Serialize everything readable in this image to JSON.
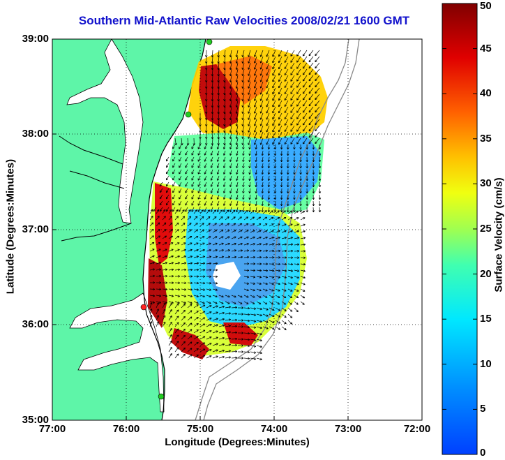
{
  "title": "Southern Mid-Atlantic Raw Velocities 2008/02/21 1600 GMT",
  "axes": {
    "xlabel": "Longitude (Degrees:Minutes)",
    "ylabel": "Latitude (Degrees:Minutes)",
    "xticks": [
      "77:00",
      "76:00",
      "75:00",
      "74:00",
      "73:00",
      "72:00"
    ],
    "yticks": [
      "39:00",
      "38:00",
      "37:00",
      "36:00",
      "35:00"
    ]
  },
  "colorbar": {
    "label": "Surface Velocity (cm/s)",
    "ticks": [
      "50",
      "45",
      "40",
      "35",
      "30",
      "25",
      "20",
      "15",
      "10",
      "5",
      "0"
    ]
  },
  "colors": {
    "land": "#5ef5a8",
    "water": "#ffffff",
    "title": "#1111cc",
    "station_green": "#22cc22",
    "station_red": "#ff2222"
  },
  "chart_data": {
    "type": "heatmap",
    "title": "Southern Mid-Atlantic Raw Velocities 2008/02/21 1600 GMT",
    "xlabel": "Longitude (Degrees:Minutes)",
    "ylabel": "Latitude (Degrees:Minutes)",
    "xlim": [
      -77.0,
      -72.0
    ],
    "ylim": [
      35.0,
      39.0
    ],
    "colorbar_range": [
      0,
      50
    ],
    "colorbar_label": "Surface Velocity (cm/s)",
    "colormap": "jet",
    "stations": [
      {
        "lon": -75.0,
        "lat": 39.0,
        "status": "green"
      },
      {
        "lon": -75.1,
        "lat": 38.2,
        "status": "green"
      },
      {
        "lon": -75.7,
        "lat": 36.2,
        "status": "red"
      },
      {
        "lon": -75.5,
        "lat": 35.25,
        "status": "green"
      }
    ],
    "features": [
      "velocity-arrows",
      "bathymetry-contours",
      "coastline"
    ]
  }
}
